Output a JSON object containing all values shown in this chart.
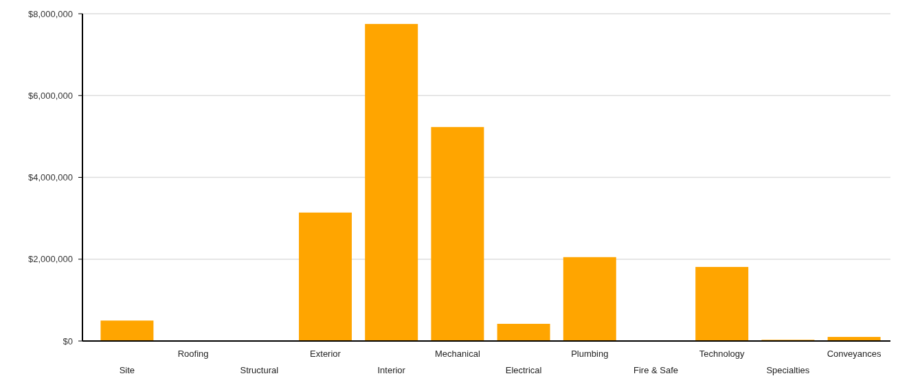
{
  "chart_data": {
    "type": "bar",
    "categories": [
      "Site",
      "Roofing",
      "Structural",
      "Exterior",
      "Interior",
      "Mechanical",
      "Electrical",
      "Plumbing",
      "Fire & Safe",
      "Technology",
      "Specialties",
      "Conveyances"
    ],
    "values": [
      500000,
      0,
      0,
      3140000,
      7750000,
      5230000,
      420000,
      2050000,
      0,
      1810000,
      30000,
      100000
    ],
    "color": "#ffa500",
    "ylim": [
      0,
      8000000
    ],
    "yticks": [
      {
        "value": 0,
        "label": "$0"
      },
      {
        "value": 2000000,
        "label": "$2,000,000"
      },
      {
        "value": 4000000,
        "label": "$4,000,000"
      },
      {
        "value": 6000000,
        "label": "$6,000,000"
      },
      {
        "value": 8000000,
        "label": "$8,000,000"
      }
    ],
    "grid": "y"
  }
}
